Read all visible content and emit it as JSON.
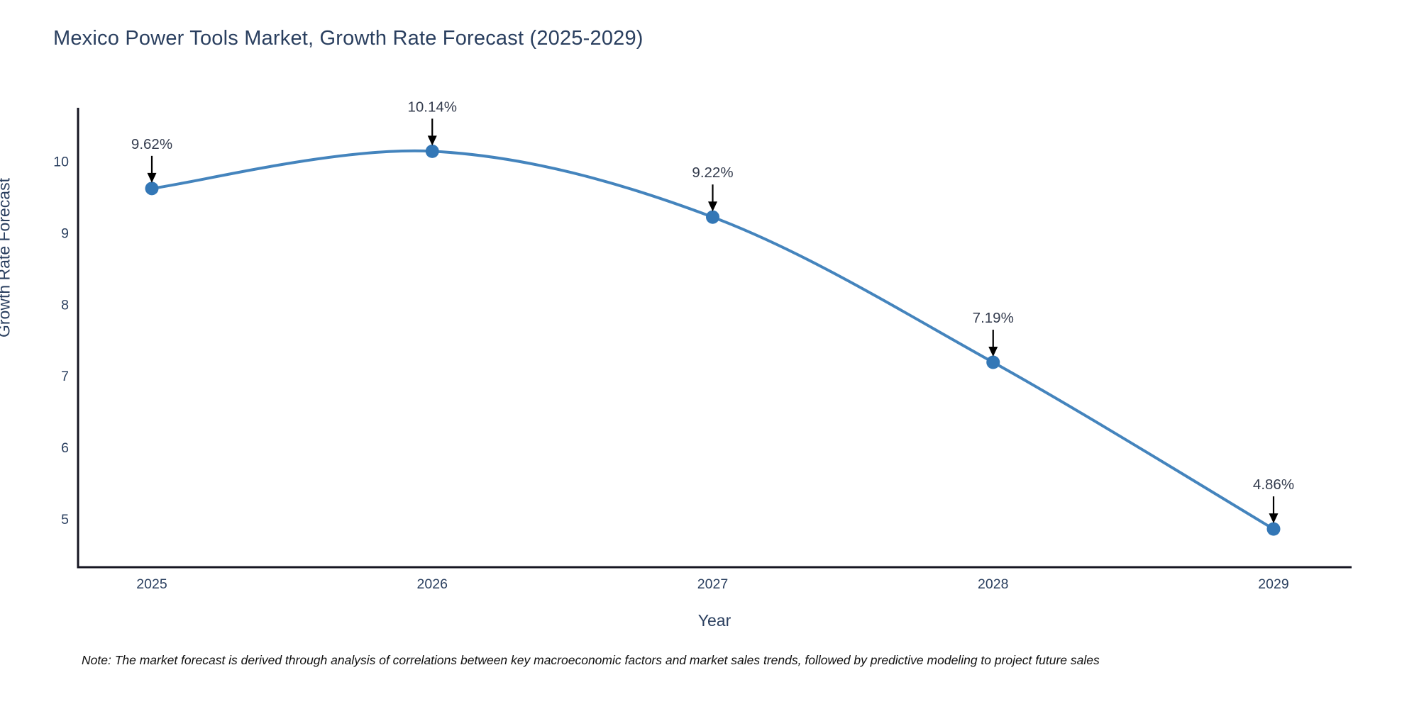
{
  "title": "Mexico Power Tools Market, Growth Rate Forecast (2025-2029)",
  "note": "Note: The market forecast is derived through analysis of correlations between key macroeconomic factors and market sales trends, followed by predictive modeling to project future sales",
  "chart_data": {
    "type": "line",
    "line_shape": "spline",
    "title": "Mexico Power Tools Market, Growth Rate Forecast (2025-2029)",
    "xlabel": "Year",
    "ylabel": "Growth Rate Forecast",
    "x": [
      2025,
      2026,
      2027,
      2028,
      2029
    ],
    "series": [
      {
        "name": "Growth Rate Forecast",
        "values": [
          9.62,
          10.14,
          9.22,
          7.19,
          4.86
        ]
      }
    ],
    "point_labels": [
      "9.62%",
      "10.14%",
      "9.22%",
      "7.19%",
      "4.86%"
    ],
    "yticks": [
      5,
      6,
      7,
      8,
      9,
      10
    ],
    "ylim": [
      4.3,
      10.8
    ],
    "grid": false,
    "legend": "none",
    "colors": {
      "line": "#4484bd",
      "marker": "#3377b6",
      "axis": "#161622",
      "tick_text": "#2a3f5f",
      "annotation_text": "#333b4d",
      "annotation_arrow": "#000000",
      "title_text": "#2a3f5f",
      "note_text": "#111111",
      "background": "#ffffff"
    }
  }
}
